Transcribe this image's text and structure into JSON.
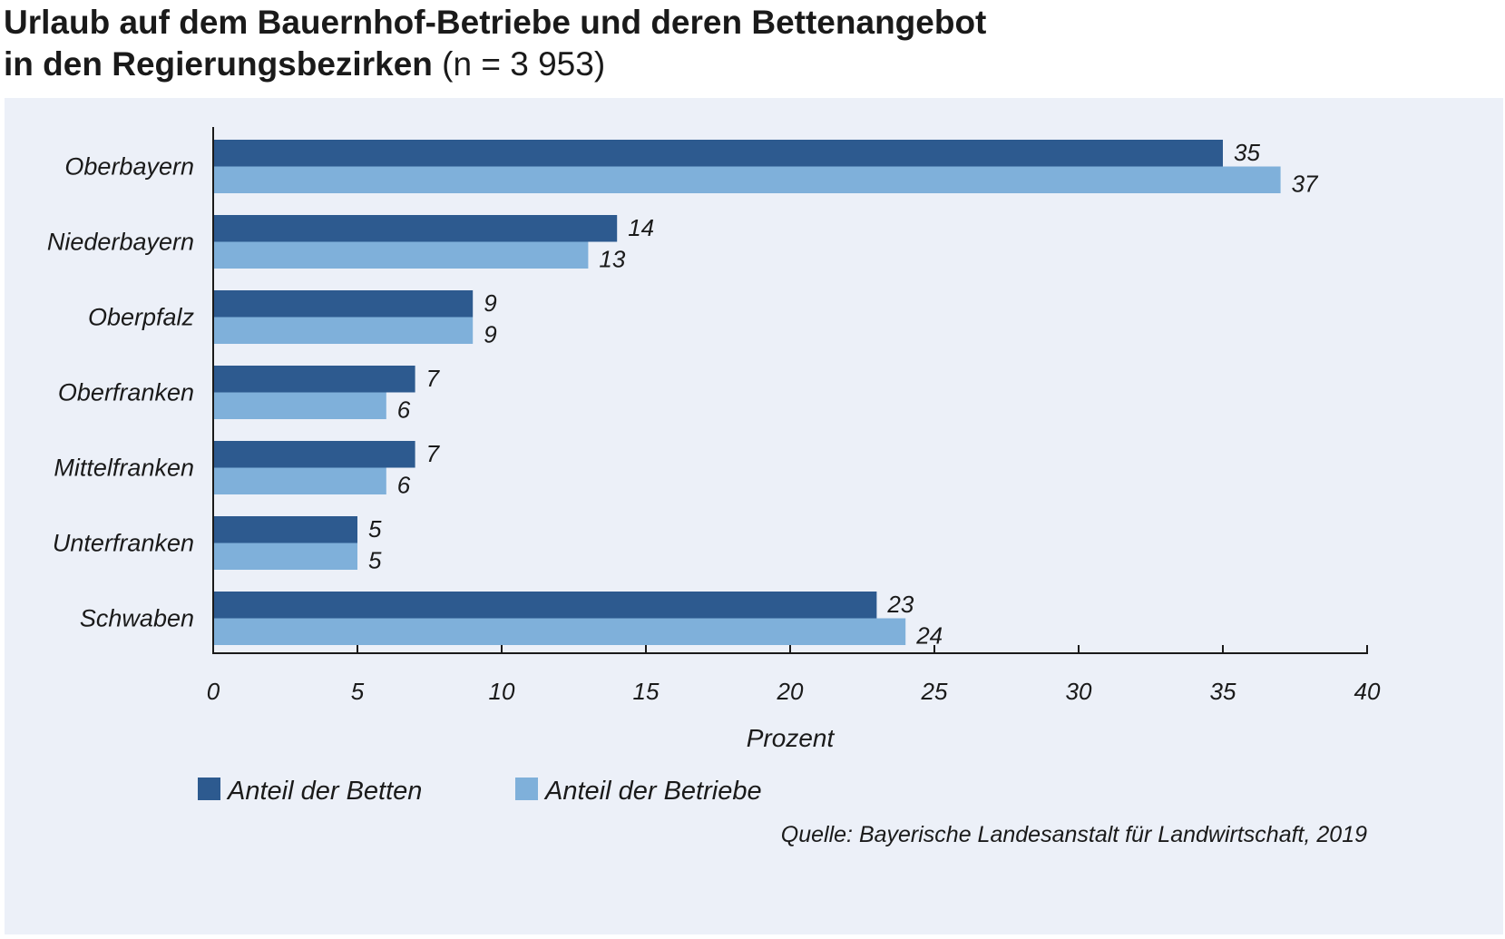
{
  "title": {
    "line1": "Urlaub auf dem Bauernhof-Betriebe und deren Bettenangebot",
    "line2": "in den Regierungsbezirken",
    "n": "(n = 3 953)"
  },
  "chart_data": {
    "type": "bar",
    "orientation": "horizontal",
    "categories": [
      "Oberbayern",
      "Niederbayern",
      "Oberpfalz",
      "Oberfranken",
      "Mittelfranken",
      "Unterfranken",
      "Schwaben"
    ],
    "series": [
      {
        "name": "Anteil der Betten",
        "values": [
          35,
          14,
          9,
          7,
          7,
          5,
          23
        ],
        "color": "#2d5a8f"
      },
      {
        "name": "Anteil der Betriebe",
        "values": [
          37,
          13,
          9,
          6,
          6,
          5,
          24
        ],
        "color": "#7fb0da"
      }
    ],
    "xlabel": "Prozent",
    "xlim": [
      0,
      40
    ],
    "xticks": [
      0,
      5,
      10,
      15,
      20,
      25,
      30,
      35,
      40
    ],
    "legend_position": "bottom-left",
    "grid": false
  },
  "source": "Quelle: Bayerische Landesanstalt für Landwirtschaft, 2019",
  "colors": {
    "panel": "#ecf0f8",
    "axis": "#1a1a1a"
  }
}
